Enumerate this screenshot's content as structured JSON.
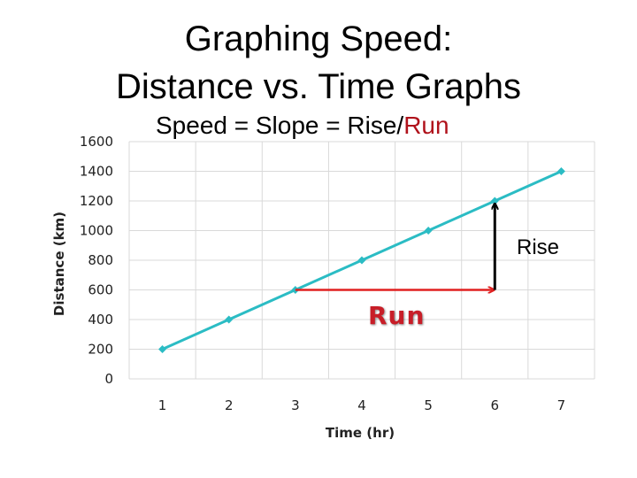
{
  "title": {
    "line1": "Graphing Speed:",
    "line2": "Distance vs. Time Graphs"
  },
  "subtitle": {
    "prefix": "Speed = Slope = Rise/",
    "run": "Run"
  },
  "annotations": {
    "rise": "Rise",
    "run": "Run"
  },
  "colors": {
    "series": "#2bbcc4",
    "run_arrow": "#e02020",
    "rise_arrow": "#000000",
    "grid": "#d9d9d9",
    "run_text": "#c81e28"
  },
  "chart_data": {
    "type": "line",
    "x": [
      1,
      2,
      3,
      4,
      5,
      6,
      7
    ],
    "y": [
      200,
      400,
      600,
      800,
      1000,
      1200,
      1400
    ],
    "xlabel": "Time (hr)",
    "ylabel": "Distance (km)",
    "ylim": [
      0,
      1600
    ],
    "yticks": [
      0,
      200,
      400,
      600,
      800,
      1000,
      1200,
      1400,
      1600
    ],
    "xticks": [
      1,
      2,
      3,
      4,
      5,
      6,
      7
    ],
    "grid": true,
    "markers": "diamond",
    "arrows": {
      "run": {
        "from": [
          3,
          600
        ],
        "to": [
          6,
          600
        ]
      },
      "rise": {
        "from": [
          6,
          600
        ],
        "to": [
          6,
          1200
        ]
      }
    }
  }
}
